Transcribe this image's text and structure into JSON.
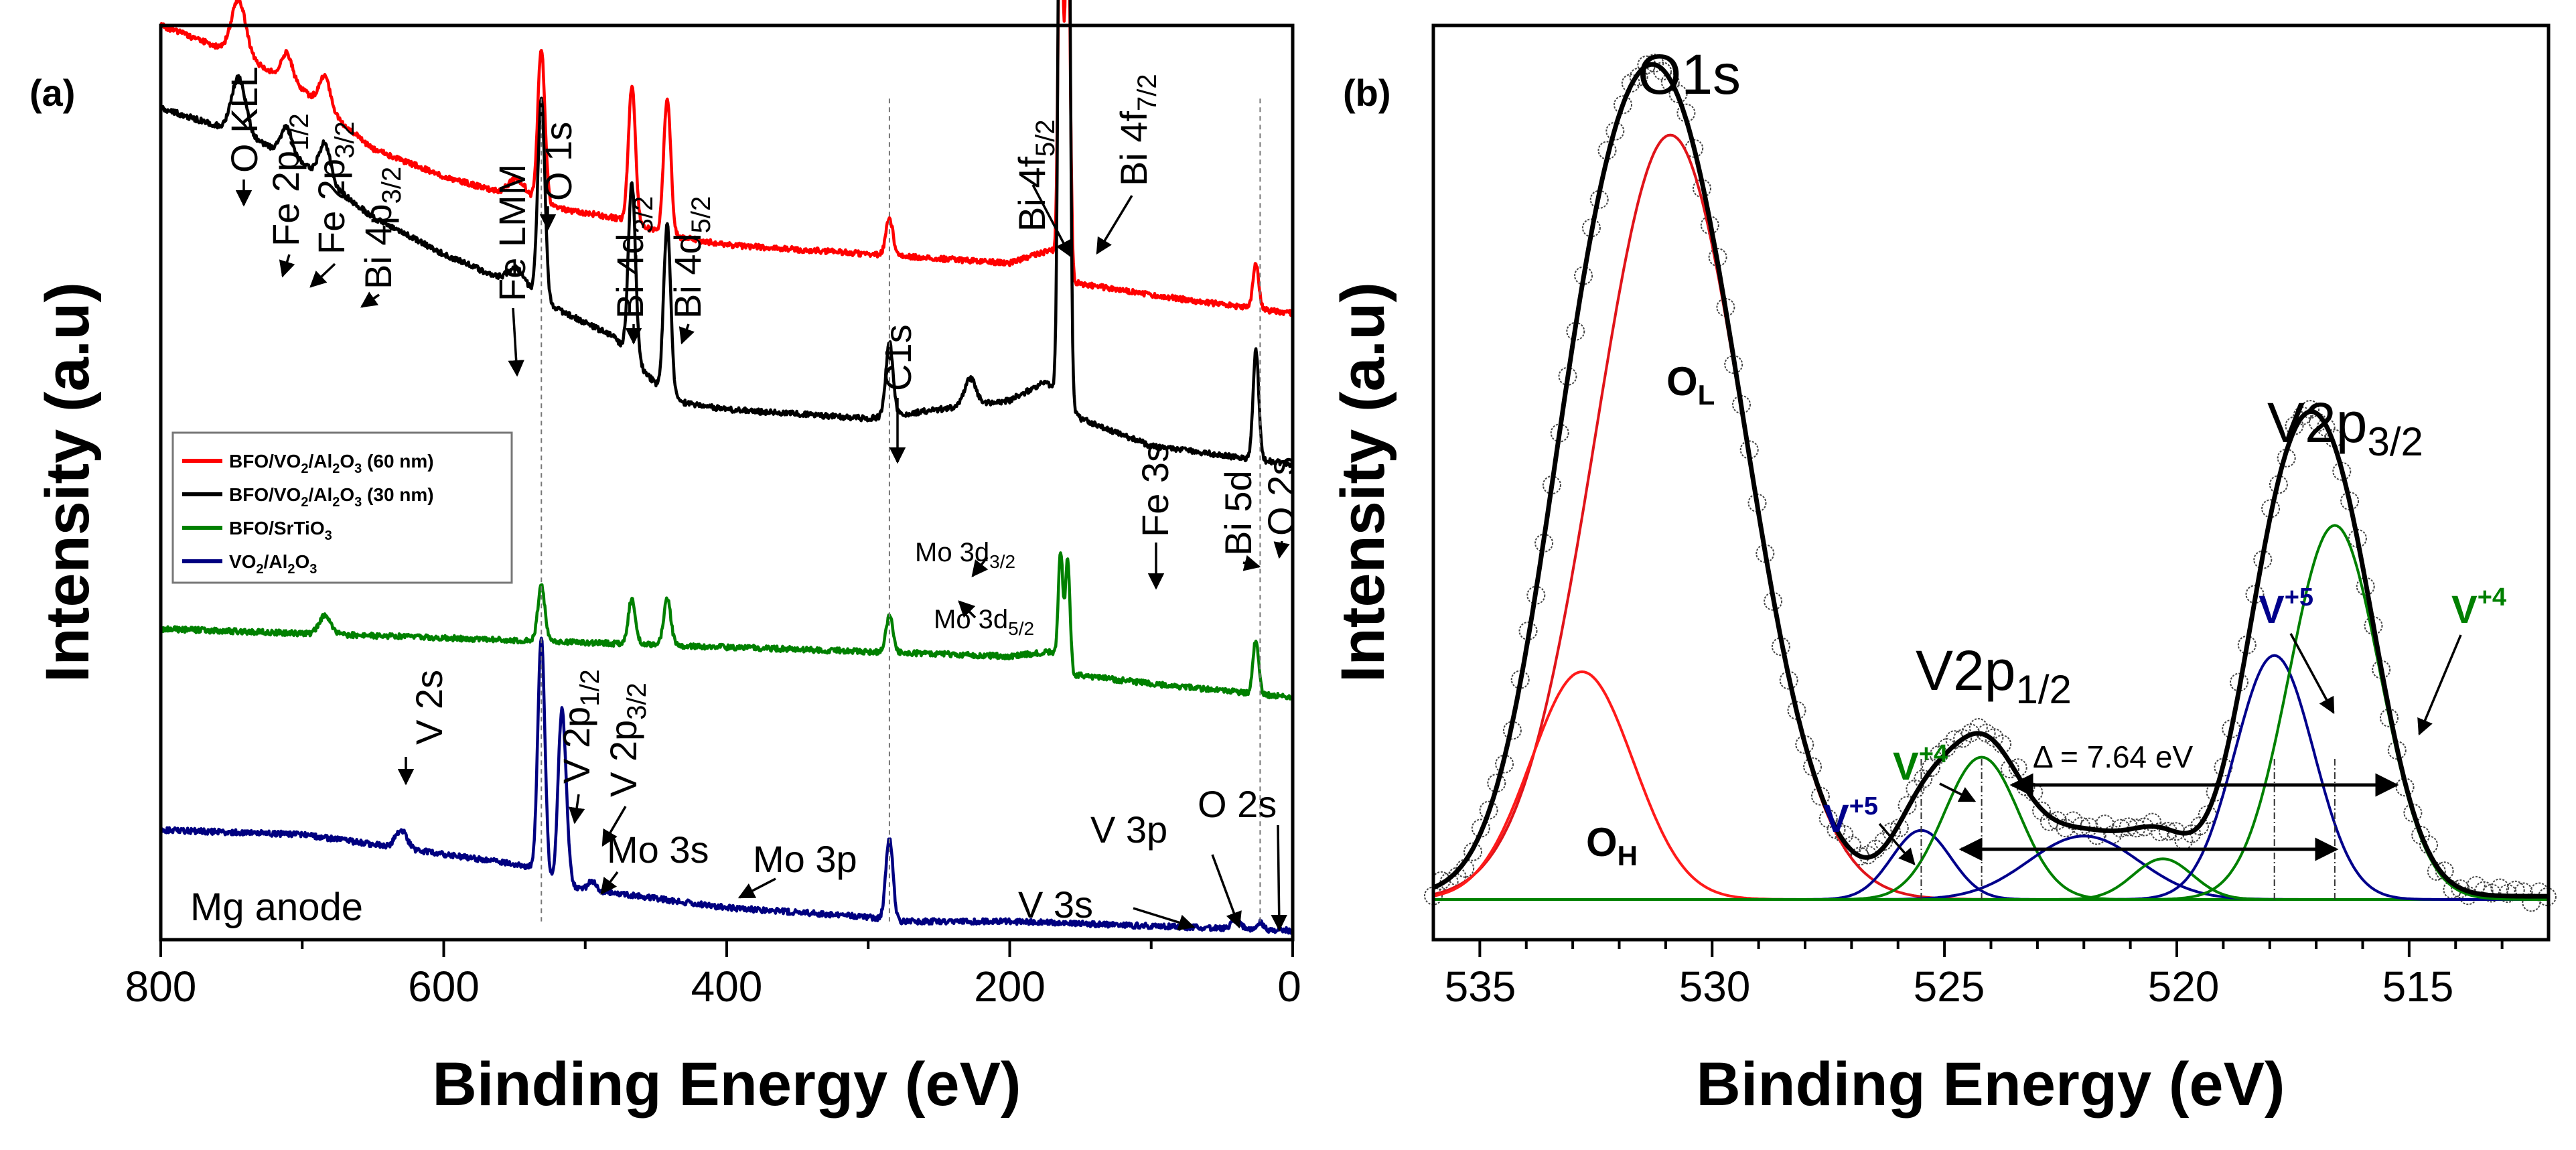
{
  "chart_data": [
    {
      "panel": "(a)",
      "type": "line",
      "xlabel": "Binding Energy (eV)",
      "ylabel": "Intensity (a.u)",
      "xlim": [
        800,
        0
      ],
      "x_ticks": [
        "800",
        "600",
        "400",
        "200",
        "0"
      ],
      "corner_note": "Mg anode",
      "legend": [
        {
          "label": "BFO/VO2/Al2O3 (60 nm)",
          "color": "#ff0000"
        },
        {
          "label": "BFO/VO2/Al2O3 (30 nm)",
          "color": "#000000"
        },
        {
          "label": "BFO/SrTiO3",
          "color": "#008000"
        },
        {
          "label": "VO2/Al2O3",
          "color": "#000080"
        }
      ],
      "series": [
        {
          "name": "BFO/VO2/Al2O3 (60 nm)",
          "color": "#ff0000",
          "offset": 0.76,
          "baseline": [
            [
              800,
              0.24
            ],
            [
              740,
              0.205
            ],
            [
              700,
              0.17
            ],
            [
              650,
              0.105
            ],
            [
              600,
              0.075
            ],
            [
              555,
              0.055
            ],
            [
              520,
              0.04
            ],
            [
              480,
              0.03
            ],
            [
              440,
              0.01
            ],
            [
              400,
              0.0
            ],
            [
              300,
              -0.01
            ],
            [
              200,
              -0.02
            ],
            [
              170,
              -0.005
            ],
            [
              160,
              -0.04
            ],
            [
              100,
              -0.055
            ],
            [
              50,
              -0.065
            ],
            [
              0,
              -0.075
            ]
          ],
          "peaks": [
            [
              745,
              0.06,
              5
            ],
            [
              711,
              0.03,
              4
            ],
            [
              684,
              0.035,
              4
            ],
            [
              548,
              0.02,
              6
            ],
            [
              531,
              0.17,
              2.5
            ],
            [
              467,
              0.15,
              2.5
            ],
            [
              442,
              0.15,
              2.5
            ],
            [
              285,
              0.04,
              2.5
            ],
            [
              164,
              0.47,
              1.6
            ],
            [
              159,
              0.47,
              1.6
            ],
            [
              26,
              0.05,
              2
            ]
          ]
        },
        {
          "name": "BFO/VO2/Al2O3 (30 nm)",
          "color": "#000000",
          "offset": 0.55,
          "baseline": [
            [
              800,
              0.36
            ],
            [
              740,
              0.33
            ],
            [
              700,
              0.3
            ],
            [
              650,
              0.24
            ],
            [
              600,
              0.2
            ],
            [
              555,
              0.17
            ],
            [
              520,
              0.14
            ],
            [
              480,
              0.11
            ],
            [
              440,
              0.04
            ],
            [
              400,
              0.03
            ],
            [
              300,
              0.02
            ],
            [
              250,
              0.03
            ],
            [
              200,
              0.04
            ],
            [
              175,
              0.06
            ],
            [
              165,
              0.05
            ],
            [
              150,
              0.02
            ],
            [
              100,
              -0.01
            ],
            [
              50,
              -0.02
            ],
            [
              0,
              -0.03
            ]
          ],
          "peaks": [
            [
              745,
              0.06,
              5
            ],
            [
              711,
              0.03,
              4
            ],
            [
              684,
              0.04,
              4
            ],
            [
              548,
              0.02,
              6
            ],
            [
              531,
              0.22,
              2.5
            ],
            [
              467,
              0.19,
              2.5
            ],
            [
              442,
              0.19,
              2.5
            ],
            [
              285,
              0.08,
              2.5
            ],
            [
              228,
              0.03,
              4
            ],
            [
              164,
              0.8,
              1.6
            ],
            [
              159,
              0.8,
              1.6
            ],
            [
              26,
              0.12,
              2
            ]
          ]
        },
        {
          "name": "BFO/SrTiO3",
          "color": "#008000",
          "offset": 0.34,
          "baseline": [
            [
              800,
              0.0
            ],
            [
              700,
              -0.005
            ],
            [
              600,
              -0.01
            ],
            [
              500,
              -0.015
            ],
            [
              400,
              -0.02
            ],
            [
              300,
              -0.025
            ],
            [
              200,
              -0.03
            ],
            [
              170,
              -0.025
            ],
            [
              155,
              -0.05
            ],
            [
              100,
              -0.06
            ],
            [
              0,
              -0.075
            ]
          ],
          "peaks": [
            [
              684,
              0.02,
              4
            ],
            [
              531,
              0.06,
              2.5
            ],
            [
              467,
              0.05,
              2.5
            ],
            [
              442,
              0.05,
              2.5
            ],
            [
              285,
              0.04,
              2.5
            ],
            [
              164,
              0.12,
              1.6
            ],
            [
              159,
              0.12,
              1.6
            ],
            [
              26,
              0.06,
              2
            ]
          ]
        },
        {
          "name": "VO2/Al2O3",
          "color": "#000080",
          "offset": 0.12,
          "baseline": [
            [
              800,
              0.0
            ],
            [
              700,
              -0.005
            ],
            [
              630,
              -0.02
            ],
            [
              560,
              -0.035
            ],
            [
              540,
              -0.04
            ],
            [
              520,
              -0.06
            ],
            [
              500,
              -0.065
            ],
            [
              400,
              -0.085
            ],
            [
              300,
              -0.095
            ],
            [
              280,
              -0.1
            ],
            [
              200,
              -0.1
            ],
            [
              100,
              -0.105
            ],
            [
              0,
              -0.11
            ]
          ],
          "peaks": [
            [
              630,
              0.02,
              4
            ],
            [
              531,
              0.26,
              2.5
            ],
            [
              517,
              0.16,
              2.5
            ],
            [
              514,
              0.06,
              2.5
            ],
            [
              495,
              0.01,
              3
            ],
            [
              285,
              0.09,
              2.5
            ],
            [
              40,
              0.01,
              3
            ],
            [
              23,
              0.008,
              2
            ]
          ]
        }
      ],
      "annotations": [
        {
          "id": "o-kll",
          "text": "O KLL",
          "sub": ""
        },
        {
          "id": "fe2p12",
          "text": "Fe 2p",
          "sub": "1/2"
        },
        {
          "id": "fe2p32",
          "text": "Fe 2p",
          "sub": "3/2"
        },
        {
          "id": "bi4p32",
          "text": "Bi 4p",
          "sub": "3/2"
        },
        {
          "id": "fe-lmm",
          "text": "Fe LMM",
          "sub": ""
        },
        {
          "id": "o1s",
          "text": "O 1s",
          "sub": ""
        },
        {
          "id": "bi4d32",
          "text": "Bi 4d",
          "sub": "3/2"
        },
        {
          "id": "bi4d52",
          "text": "Bi 4d",
          "sub": "5/2"
        },
        {
          "id": "c1s",
          "text": "C1s",
          "sub": ""
        },
        {
          "id": "bi4f52",
          "text": "Bi 4f",
          "sub": "5/2"
        },
        {
          "id": "bi4f72",
          "text": "Bi 4f",
          "sub": "7/2"
        },
        {
          "id": "fe3s",
          "text": "Fe 3s",
          "sub": ""
        },
        {
          "id": "bi5d",
          "text": "Bi 5d",
          "sub": ""
        },
        {
          "id": "o2s-top",
          "text": "O 2s",
          "sub": ""
        },
        {
          "id": "mo3d32",
          "text": "Mo 3d",
          "sub": "3/2"
        },
        {
          "id": "mo3d52",
          "text": "Mo 3d",
          "sub": "5/2"
        },
        {
          "id": "v2s",
          "text": "V 2s",
          "sub": ""
        },
        {
          "id": "v2p12",
          "text": "V 2p",
          "sub": "1/2"
        },
        {
          "id": "v2p32",
          "text": "V 2p",
          "sub": "3/2"
        },
        {
          "id": "mo3s",
          "text": "Mo 3s",
          "sub": ""
        },
        {
          "id": "mo3p",
          "text": "Mo 3p",
          "sub": ""
        },
        {
          "id": "v3s",
          "text": "V 3s",
          "sub": ""
        },
        {
          "id": "v3p",
          "text": "V 3p",
          "sub": ""
        },
        {
          "id": "o2s-bottom",
          "text": "O 2s",
          "sub": ""
        }
      ]
    },
    {
      "panel": "(b)",
      "type": "line",
      "xlabel": "Binding Energy (eV)",
      "ylabel": "Intensity (a.u)",
      "xlim": [
        536,
        512
      ],
      "ylim": [
        0,
        1.05
      ],
      "x_ticks": [
        "535",
        "530",
        "525",
        "520",
        "515"
      ],
      "components": [
        {
          "name": "O_L",
          "color": "#e0141a",
          "center": 530.9,
          "height": 0.94,
          "fwhm": 3.8
        },
        {
          "name": "O_H",
          "color": "#ff1a1a",
          "center": 532.8,
          "height": 0.28,
          "fwhm": 2.6
        },
        {
          "name": "V+5 (V2p1/2)",
          "color": "#00008b",
          "center": 525.5,
          "height": 0.085,
          "fwhm": 1.5
        },
        {
          "name": "V+4 (V2p1/2)",
          "color": "#008000",
          "center": 524.2,
          "height": 0.175,
          "fwhm": 1.9
        },
        {
          "name": "V 2p1/2 satellite",
          "color": "#00008b",
          "center": 522.0,
          "height": 0.078,
          "fwhm": 2.8
        },
        {
          "name": "V 2p3/2 satellite",
          "color": "#008000",
          "center": 520.3,
          "height": 0.05,
          "fwhm": 1.5
        },
        {
          "name": "V+5 (V2p3/2)",
          "color": "#00008b",
          "center": 517.9,
          "height": 0.3,
          "fwhm": 2.0
        },
        {
          "name": "V+4 (V2p3/2)",
          "color": "#008000",
          "center": 516.6,
          "height": 0.46,
          "fwhm": 2.3
        }
      ],
      "envelope_color": "#000000",
      "delta_label": "Δ = 7.64 eV",
      "labels": {
        "o1s": {
          "text": "O1s",
          "sub": ""
        },
        "ol": {
          "text": "O",
          "sub": "L"
        },
        "oh": {
          "text": "O",
          "sub": "H"
        },
        "v2p32": {
          "text": "V2p",
          "sub": "3/2"
        },
        "v2p12": {
          "text": "V2p",
          "sub": "1/2"
        },
        "v5a": {
          "text": "V",
          "sup": "+5"
        },
        "v4a": {
          "text": "V",
          "sup": "+4"
        },
        "v5b": {
          "text": "V",
          "sup": "+5"
        },
        "v4b": {
          "text": "V",
          "sup": "+4"
        }
      }
    }
  ]
}
